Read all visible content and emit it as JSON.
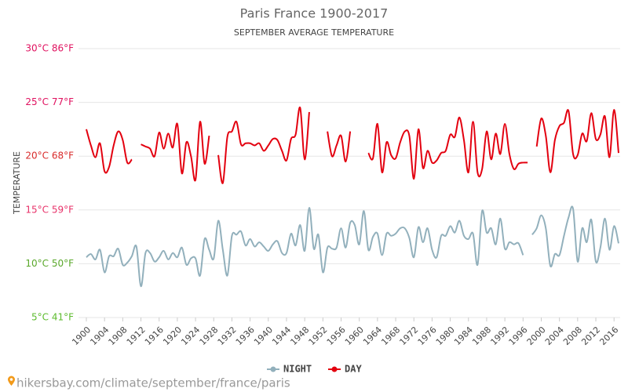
{
  "chart_data": {
    "type": "line",
    "title": "Paris France 1900-2017",
    "subtitle": "SEPTEMBER AVERAGE TEMPERATURE",
    "y_label": "TEMPERATURE",
    "source": "hikersbay.com/climate/september/france/paris",
    "xlim": [
      1900,
      2017
    ],
    "xticks": [
      1900,
      1904,
      1908,
      1912,
      1916,
      1920,
      1924,
      1928,
      1932,
      1936,
      1940,
      1944,
      1948,
      1952,
      1956,
      1960,
      1964,
      1968,
      1972,
      1976,
      1980,
      1984,
      1988,
      1992,
      1996,
      2000,
      2004,
      2008,
      2012,
      2016
    ],
    "ylim": [
      5,
      30
    ],
    "yticks": [
      {
        "value": 5,
        "label": "5°C 41°F"
      },
      {
        "value": 10,
        "label": "10°C 50°F"
      },
      {
        "value": 15,
        "label": "15°C 59°F"
      },
      {
        "value": 20,
        "label": "20°C 68°F"
      },
      {
        "value": 25,
        "label": "25°C 77°F"
      },
      {
        "value": 30,
        "label": "30°C 86°F"
      }
    ],
    "ytick_colors": [
      "#5dbb2e",
      "#5aa82b",
      "#e8336a",
      "#d92b2b",
      "#e0115f",
      "#e0115f"
    ],
    "grid": true,
    "legend": "bottom",
    "x": [
      1900,
      1901,
      1902,
      1903,
      1904,
      1905,
      1906,
      1907,
      1908,
      1909,
      1910,
      1911,
      1912,
      1913,
      1914,
      1915,
      1916,
      1917,
      1918,
      1919,
      1920,
      1921,
      1922,
      1923,
      1924,
      1925,
      1926,
      1927,
      1928,
      1929,
      1930,
      1931,
      1932,
      1933,
      1934,
      1935,
      1936,
      1937,
      1938,
      1939,
      1940,
      1941,
      1942,
      1943,
      1944,
      1945,
      1946,
      1947,
      1948,
      1949,
      1950,
      1951,
      1952,
      1953,
      1954,
      1955,
      1956,
      1957,
      1958,
      1959,
      1960,
      1961,
      1962,
      1963,
      1964,
      1965,
      1966,
      1967,
      1968,
      1969,
      1970,
      1971,
      1972,
      1973,
      1974,
      1975,
      1976,
      1977,
      1978,
      1979,
      1980,
      1981,
      1982,
      1983,
      1984,
      1985,
      1986,
      1987,
      1988,
      1989,
      1990,
      1991,
      1992,
      1993,
      1994,
      1995,
      1996,
      1997,
      1998,
      1999,
      2000,
      2001,
      2002,
      2003,
      2004,
      2005,
      2006,
      2007,
      2008,
      2009,
      2010,
      2011,
      2012,
      2013,
      2014,
      2015,
      2016,
      2017
    ],
    "series": [
      {
        "name": "NIGHT",
        "color": "#92b0bc",
        "values": [
          10.6,
          10.9,
          10.4,
          11.3,
          9.2,
          10.7,
          10.7,
          11.4,
          9.9,
          10.1,
          10.7,
          11.6,
          7.9,
          11,
          11,
          10.2,
          10.6,
          11.2,
          10.4,
          11,
          10.6,
          11.5,
          9.9,
          10.5,
          10.5,
          8.9,
          12.3,
          11.3,
          10.5,
          14,
          11.3,
          8.9,
          12.6,
          12.7,
          13,
          11.7,
          12.3,
          11.6,
          12,
          11.6,
          11.2,
          11.8,
          12.1,
          11,
          11,
          12.8,
          11.7,
          13.6,
          11.2,
          15.2,
          11.4,
          12.7,
          9.2,
          11.5,
          11.4,
          11.5,
          13.3,
          11.5,
          13.8,
          13.6,
          11.8,
          14.9,
          11.3,
          12.5,
          12.8,
          10.8,
          12.8,
          12.6,
          12.8,
          13.3,
          13.3,
          12.4,
          10.6,
          13.4,
          12,
          13.3,
          11.3,
          10.6,
          12.6,
          12.6,
          13.5,
          12.9,
          14,
          12.6,
          12.3,
          12.8,
          9.9,
          14.9,
          12.9,
          13.3,
          11.8,
          14.2,
          11.4,
          12,
          11.8,
          11.9,
          10.8,
          null,
          12.7,
          13.3,
          14.5,
          13.3,
          9.8,
          10.9,
          10.8,
          12.6,
          14.3,
          15.1,
          10.2,
          13.3,
          12,
          14.1,
          10.2,
          11.5,
          14.2,
          11.3,
          13.5,
          11.9
        ]
      },
      {
        "name": "DAY",
        "color": "#e3000f",
        "values": [
          22.5,
          21,
          19.9,
          21.2,
          18.6,
          19,
          21,
          22.3,
          21.5,
          19.4,
          19.7,
          null,
          21.1,
          20.9,
          20.7,
          20,
          22.2,
          20.7,
          22.1,
          20.8,
          23,
          18.4,
          21.3,
          20,
          17.8,
          23.2,
          19.3,
          21.9,
          null,
          20.1,
          17.5,
          21.8,
          22.3,
          23.2,
          21.1,
          21.2,
          21.2,
          21,
          21.2,
          20.5,
          21,
          21.6,
          21.5,
          20.5,
          19.6,
          21.6,
          22,
          24.5,
          19.7,
          24.1,
          null,
          null,
          null,
          22.3,
          20,
          21,
          21.9,
          19.5,
          22.3,
          null,
          null,
          null,
          20.3,
          19.8,
          23,
          18.5,
          21.3,
          20.1,
          19.8,
          21.3,
          22.3,
          21.9,
          17.9,
          22.5,
          18.9,
          20.5,
          19.4,
          19.6,
          20.3,
          20.5,
          22,
          21.8,
          23.6,
          21.5,
          18.5,
          23.2,
          18.5,
          18.8,
          22.3,
          19.7,
          22.1,
          20.2,
          23,
          20.2,
          18.8,
          19.3,
          19.4,
          19.4,
          null,
          20.9,
          23.5,
          21.9,
          18.5,
          21.5,
          22.8,
          23.1,
          24.2,
          20.2,
          20.1,
          22.1,
          21.4,
          24,
          21.6,
          22,
          23.7,
          19.9,
          24.3,
          20.3
        ]
      }
    ]
  }
}
